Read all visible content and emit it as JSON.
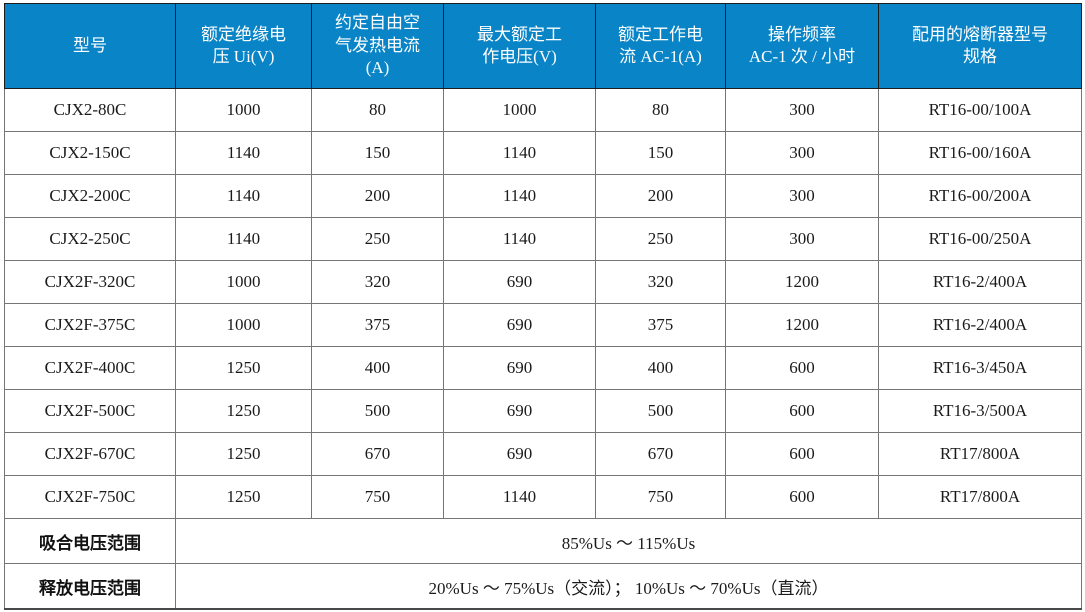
{
  "theme": {
    "header_bg": "#0984c6",
    "header_fg": "#ffffff",
    "grid_border": "#767676",
    "body_text": "#1a1a1a"
  },
  "table": {
    "columns": [
      {
        "label": "型号"
      },
      {
        "label": "额定绝缘电\n压 Ui(V)"
      },
      {
        "label": "约定自由空\n气发热电流\n(A)"
      },
      {
        "label": "最大额定工\n作电压(V)"
      },
      {
        "label": "额定工作电\n流 AC-1(A)"
      },
      {
        "label": "操作频率\nAC-1 次 / 小时"
      },
      {
        "label": "配用的熔断器型号\n规格"
      }
    ],
    "rows": [
      [
        "CJX2-80C",
        "1000",
        "80",
        "1000",
        "80",
        "300",
        "RT16-00/100A"
      ],
      [
        "CJX2-150C",
        "1140",
        "150",
        "1140",
        "150",
        "300",
        "RT16-00/160A"
      ],
      [
        "CJX2-200C",
        "1140",
        "200",
        "1140",
        "200",
        "300",
        "RT16-00/200A"
      ],
      [
        "CJX2-250C",
        "1140",
        "250",
        "1140",
        "250",
        "300",
        "RT16-00/250A"
      ],
      [
        "CJX2F-320C",
        "1000",
        "320",
        "690",
        "320",
        "1200",
        "RT16-2/400A"
      ],
      [
        "CJX2F-375C",
        "1000",
        "375",
        "690",
        "375",
        "1200",
        "RT16-2/400A"
      ],
      [
        "CJX2F-400C",
        "1250",
        "400",
        "690",
        "400",
        "600",
        "RT16-3/450A"
      ],
      [
        "CJX2F-500C",
        "1250",
        "500",
        "690",
        "500",
        "600",
        "RT16-3/500A"
      ],
      [
        "CJX2F-670C",
        "1250",
        "670",
        "690",
        "670",
        "600",
        "RT17/800A"
      ],
      [
        "CJX2F-750C",
        "1250",
        "750",
        "1140",
        "750",
        "600",
        "RT17/800A"
      ]
    ],
    "footer_rows": [
      {
        "label": "吸合电压范围",
        "value": "85%Us ～ 115%Us"
      },
      {
        "label": "释放电压范围",
        "value": "20%Us ～ 75%Us（交流）； 10%Us ～ 70%Us（直流）"
      }
    ]
  }
}
